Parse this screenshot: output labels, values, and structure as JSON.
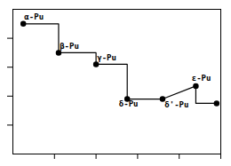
{
  "chart_data": {
    "type": "line",
    "series": [
      {
        "type": "line",
        "color": "black",
        "x": [
          0.5,
          2.2,
          2.2,
          4.0,
          4.0,
          5.5,
          5.5,
          7.2,
          8.8,
          8.8,
          9.8
        ],
        "values": [
          9.0,
          9.0,
          7.0,
          7.0,
          6.2,
          6.2,
          3.8,
          3.8,
          4.7,
          3.5,
          3.5
        ]
      },
      {
        "type": "scatter",
        "marker": "circle",
        "color": "black",
        "x": [
          0.5,
          2.2,
          4.0,
          5.5,
          7.2,
          8.8,
          9.8
        ],
        "values": [
          9.0,
          7.0,
          6.2,
          3.8,
          3.8,
          4.7,
          3.5
        ]
      }
    ],
    "annotations": [
      {
        "text": "α-Pu",
        "x": 0.55,
        "y": 9.3
      },
      {
        "text": "β-Pu",
        "x": 2.25,
        "y": 7.3
      },
      {
        "text": "γ-Pu",
        "x": 4.05,
        "y": 6.5
      },
      {
        "text": "δ-Pu",
        "x": 5.1,
        "y": 3.3
      },
      {
        "text": "δ'-Pu",
        "x": 7.3,
        "y": 3.25
      },
      {
        "text": "ε-Pu",
        "x": 8.6,
        "y": 5.05
      }
    ],
    "xlim": [
      0,
      10
    ],
    "ylim": [
      0,
      10
    ],
    "xticks": [
      2.0,
      4.0,
      6.0,
      8.0,
      10.0
    ],
    "yticks": [
      2.0,
      4.0,
      6.0,
      8.0
    ],
    "tick_labels": false,
    "grid": false
  }
}
